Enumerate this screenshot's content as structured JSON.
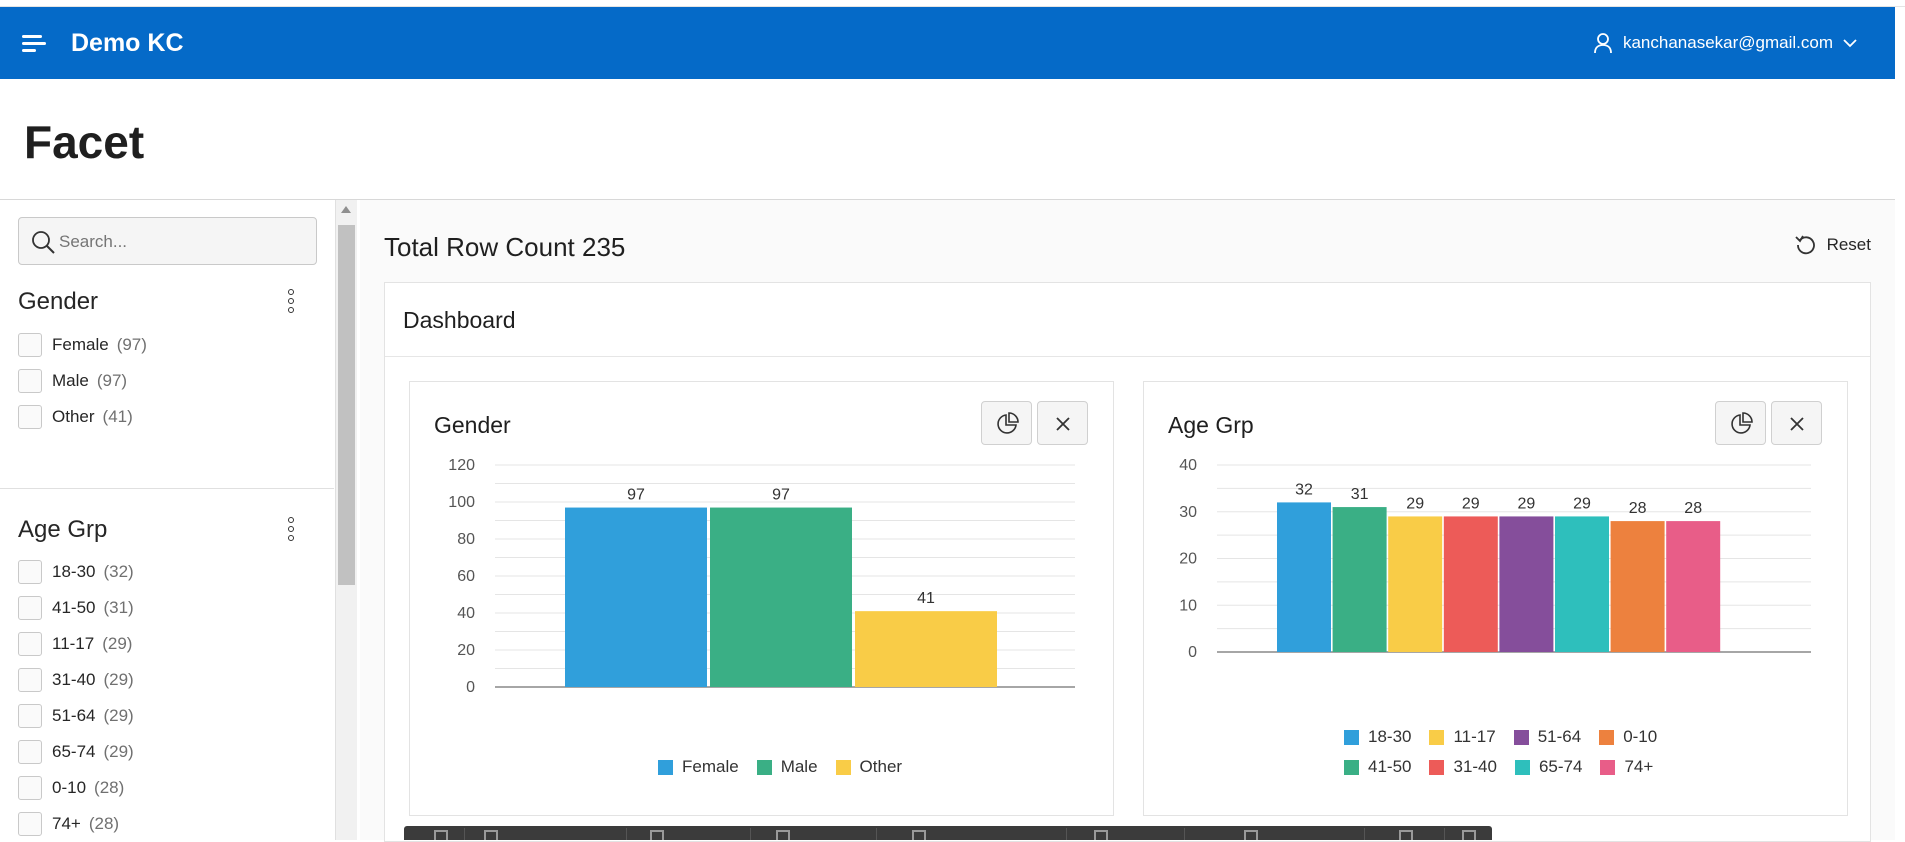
{
  "header": {
    "app_title": "Demo KC",
    "user_email": "kanchanasekar@gmail.com",
    "brand_color": "#056ac8"
  },
  "page": {
    "title": "Facet"
  },
  "sidebar": {
    "search": {
      "placeholder": "Search..."
    },
    "facets": [
      {
        "title": "Gender",
        "options": [
          {
            "label": "Female",
            "count": "(97)"
          },
          {
            "label": "Male",
            "count": "(97)"
          },
          {
            "label": "Other",
            "count": "(41)"
          }
        ]
      },
      {
        "title": "Age Grp",
        "options": [
          {
            "label": "18-30",
            "count": "(32)"
          },
          {
            "label": "41-50",
            "count": "(31)"
          },
          {
            "label": "11-17",
            "count": "(29)"
          },
          {
            "label": "31-40",
            "count": "(29)"
          },
          {
            "label": "51-64",
            "count": "(29)"
          },
          {
            "label": "65-74",
            "count": "(29)"
          },
          {
            "label": "0-10",
            "count": "(28)"
          },
          {
            "label": "74+",
            "count": "(28)"
          }
        ]
      }
    ]
  },
  "main": {
    "row_count_label": "Total Row Count 235",
    "reset_label": "Reset",
    "dashboard_title": "Dashboard"
  },
  "chart_data": [
    {
      "type": "bar",
      "title": "Gender",
      "categories": [
        "Female",
        "Male",
        "Other"
      ],
      "values": [
        97,
        97,
        41
      ],
      "colors": [
        "#309fdb",
        "#3aaf85",
        "#f9cc47"
      ],
      "yticks": [
        0,
        20,
        40,
        60,
        80,
        100,
        120
      ],
      "ylim": [
        0,
        120
      ],
      "grid": true,
      "legend": "bottom"
    },
    {
      "type": "bar",
      "title": "Age Grp",
      "categories": [
        "18-30",
        "41-50",
        "11-17",
        "31-40",
        "51-64",
        "65-74",
        "0-10",
        "74+"
      ],
      "values": [
        32,
        31,
        29,
        29,
        29,
        29,
        28,
        28
      ],
      "colors": [
        "#309fdb",
        "#3aaf85",
        "#f9cc47",
        "#ed5b58",
        "#854e9b",
        "#2ebfbc",
        "#ed813e",
        "#e85d88"
      ],
      "legend_order": [
        "18-30",
        "11-17",
        "51-64",
        "0-10",
        "41-50",
        "31-40",
        "65-74",
        "74+"
      ],
      "yticks": [
        0,
        10,
        20,
        30,
        40
      ],
      "ylim": [
        0,
        40
      ],
      "grid": true,
      "legend": "bottom"
    }
  ]
}
